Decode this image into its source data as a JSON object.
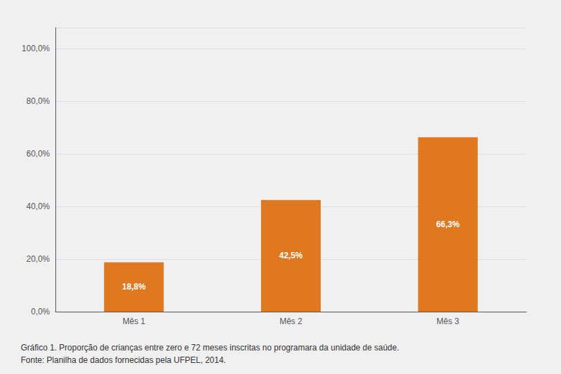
{
  "chart_data": {
    "type": "bar",
    "categories": [
      "Mês 1",
      "Mês 2",
      "Mês 3"
    ],
    "values": [
      18.8,
      42.5,
      66.3
    ],
    "value_labels": [
      "18,8%",
      "42,5%",
      "66,3%"
    ],
    "data_labels": true,
    "color": "#E07820",
    "ylim": [
      0,
      108
    ],
    "yticks": [
      {
        "value": 0,
        "label": "0,0%"
      },
      {
        "value": 20,
        "label": "20,0%"
      },
      {
        "value": 40,
        "label": "40,0%"
      },
      {
        "value": 60,
        "label": "60,0%"
      },
      {
        "value": 80,
        "label": "80,0%"
      },
      {
        "value": 100,
        "label": "100,0%"
      }
    ],
    "grid": true,
    "annotations": [
      "Gráfico 1. Proporção de crianças entre zero e 72 meses inscritas no programara da unidade de saúde.",
      "Fonte: Planilha de dados fornecidas pela UFPEL, 2014."
    ]
  }
}
